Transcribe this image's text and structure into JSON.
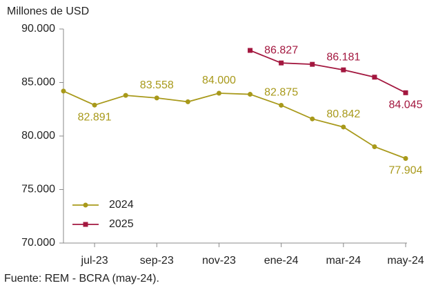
{
  "chart_data": {
    "type": "line",
    "y_axis_label": "Millones de USD",
    "source": "Fuente: REM - BCRA (may-24).",
    "categories": [
      null,
      "jul-23",
      null,
      "sep-23",
      null,
      "nov-23",
      null,
      "ene-24",
      null,
      "mar-24",
      null,
      "may-24"
    ],
    "series": [
      {
        "name": "2024",
        "color": "#a8991a",
        "marker": "circle",
        "values": [
          84200,
          82891,
          83800,
          83558,
          83200,
          84000,
          83900,
          82875,
          81600,
          80842,
          79000,
          77904
        ],
        "value_labels": [
          null,
          "82.891",
          null,
          "83.558",
          null,
          "84.000",
          null,
          "82.875",
          null,
          "80.842",
          null,
          "77.904"
        ]
      },
      {
        "name": "2025",
        "color": "#a3173f",
        "marker": "square",
        "values": [
          null,
          null,
          null,
          null,
          null,
          null,
          88000,
          86827,
          86700,
          86181,
          85500,
          84045
        ],
        "value_labels": [
          null,
          null,
          null,
          null,
          null,
          null,
          null,
          "86.827",
          null,
          "86.181",
          null,
          "84.045"
        ]
      }
    ],
    "ylim": [
      70000,
      90000
    ],
    "yticks": [
      {
        "value": 70000,
        "label": "70.000"
      },
      {
        "value": 75000,
        "label": "75.000"
      },
      {
        "value": 80000,
        "label": "80.000"
      },
      {
        "value": 85000,
        "label": "85.000"
      },
      {
        "value": 90000,
        "label": "90.000"
      }
    ],
    "legend": "lower-left"
  }
}
